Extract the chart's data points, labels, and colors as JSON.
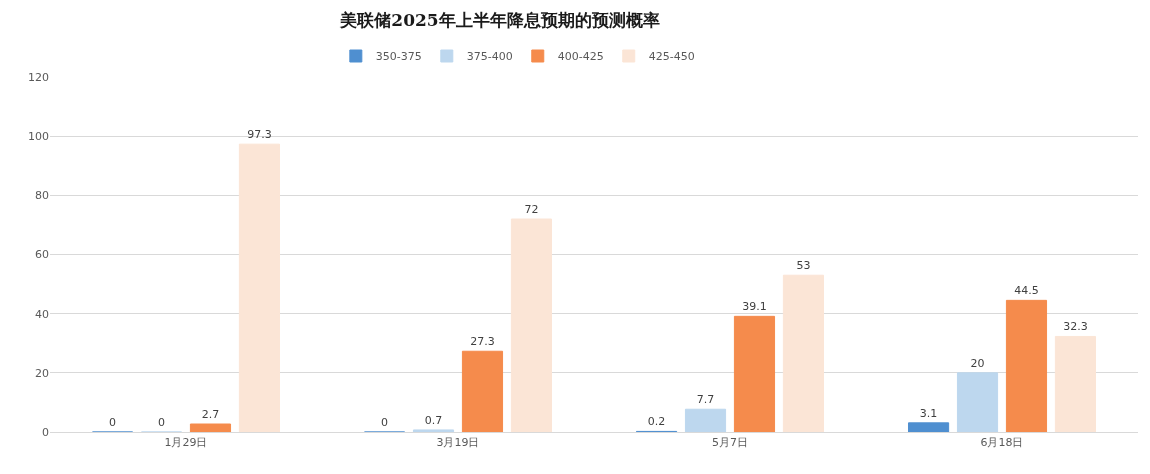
{
  "chart_data": {
    "type": "bar",
    "title": "美联储2025年上半年降息预期的预测概率",
    "categories": [
      "1月29日",
      "3月19日",
      "5月7日",
      "6月18日"
    ],
    "series": [
      {
        "name": "350-375",
        "color": "#4f8fd0",
        "values": [
          0,
          0,
          0.2,
          3.1
        ]
      },
      {
        "name": "375-400",
        "color": "#bdd7ee",
        "values": [
          0,
          0.7,
          7.7,
          20
        ]
      },
      {
        "name": "400-425",
        "color": "#f58b4c",
        "values": [
          2.7,
          27.3,
          39.1,
          44.5
        ]
      },
      {
        "name": "425-450",
        "color": "#fbe5d6",
        "values": [
          97.3,
          72,
          53,
          32.3
        ]
      }
    ],
    "ylim": [
      0,
      120
    ],
    "yticks": [
      0,
      20,
      40,
      60,
      80,
      100,
      120
    ],
    "grid": "y",
    "legend": "top",
    "data_labels": true
  }
}
